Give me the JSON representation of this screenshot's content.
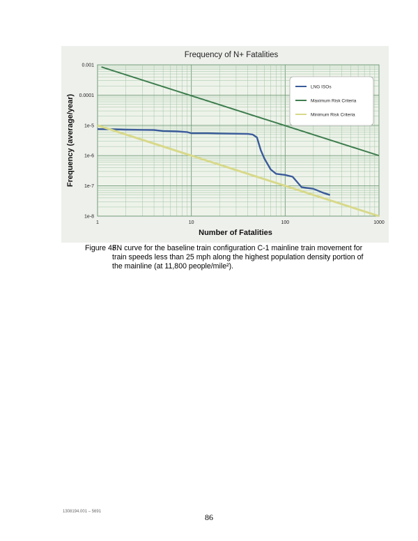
{
  "chart_data": {
    "type": "line",
    "title": "Frequency of N+ Fatalities",
    "xlabel": "Number of Fatalities",
    "ylabel": "Frequency (average/year)",
    "xscale": "log",
    "yscale": "log",
    "xlim": [
      1,
      1000
    ],
    "ylim": [
      1e-08,
      0.001
    ],
    "xtick_labels": [
      "1",
      "10",
      "100",
      "1000"
    ],
    "xtick_values": [
      1,
      10,
      100,
      1000
    ],
    "ytick_labels": [
      "1e-8",
      "1e-7",
      "1e-6",
      "1e-5",
      "0.0001",
      "0.001"
    ],
    "ytick_values": [
      1e-08,
      1e-07,
      1e-06,
      1e-05,
      0.0001,
      0.001
    ],
    "grid": true,
    "legend": "top-right",
    "series": [
      {
        "name": "LNG ISOs",
        "color": "#3a5a9a",
        "x": [
          1,
          1.5,
          2,
          3,
          4,
          5,
          7,
          9,
          10,
          15,
          20,
          30,
          40,
          45,
          50,
          55,
          60,
          70,
          80,
          100,
          120,
          150,
          200,
          250,
          300
        ],
        "y": [
          7.5e-06,
          7.4e-06,
          7.2e-06,
          7.1e-06,
          7e-06,
          6.5e-06,
          6.3e-06,
          6e-06,
          5.5e-06,
          5.5e-06,
          5.4e-06,
          5.3e-06,
          5.2e-06,
          5e-06,
          4e-06,
          1.5e-06,
          8e-07,
          3.5e-07,
          2.5e-07,
          2.3e-07,
          2e-07,
          9e-08,
          8e-08,
          6e-08,
          5e-08
        ]
      },
      {
        "name": "Maximum Risk Criteria",
        "color": "#3e7d4e",
        "x": [
          1.1,
          1000
        ],
        "y": [
          0.00085,
          1e-06
        ]
      },
      {
        "name": "Minimum Risk Criteria",
        "color": "#d8d98a",
        "x": [
          1,
          1000
        ],
        "y": [
          1e-05,
          1e-08
        ]
      }
    ]
  },
  "caption": {
    "figure_number": "Figure 43.",
    "text": "FN curve for the baseline train configuration C-1 mainline train movement for train speeds less than 25 mph along the highest population density portion of the mainline (at 11,800 people/mile²)."
  },
  "footer": {
    "document_id": "1308194.001 – 5691",
    "page_number": "86"
  }
}
